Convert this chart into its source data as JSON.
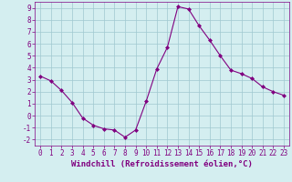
{
  "x": [
    0,
    1,
    2,
    3,
    4,
    5,
    6,
    7,
    8,
    9,
    10,
    11,
    12,
    13,
    14,
    15,
    16,
    17,
    18,
    19,
    20,
    21,
    22,
    23
  ],
  "y": [
    3.3,
    2.9,
    2.1,
    1.1,
    -0.2,
    -0.8,
    -1.1,
    -1.2,
    -1.8,
    -1.2,
    1.2,
    3.9,
    5.7,
    9.1,
    8.9,
    7.5,
    6.3,
    5.0,
    3.8,
    3.5,
    3.1,
    2.4,
    2.0,
    1.7
  ],
  "line_color": "#800080",
  "marker": "D",
  "marker_size": 2,
  "bg_color": "#d4eef0",
  "grid_color": "#a0c8d0",
  "xlabel": "Windchill (Refroidissement éolien,°C)",
  "xlim": [
    -0.5,
    23.5
  ],
  "ylim": [
    -2.5,
    9.5
  ],
  "yticks": [
    -2,
    -1,
    0,
    1,
    2,
    3,
    4,
    5,
    6,
    7,
    8,
    9
  ],
  "xticks": [
    0,
    1,
    2,
    3,
    4,
    5,
    6,
    7,
    8,
    9,
    10,
    11,
    12,
    13,
    14,
    15,
    16,
    17,
    18,
    19,
    20,
    21,
    22,
    23
  ],
  "tick_color": "#800080",
  "label_color": "#800080",
  "xlabel_fontsize": 6.5,
  "tick_fontsize": 5.5,
  "linewidth": 0.8
}
